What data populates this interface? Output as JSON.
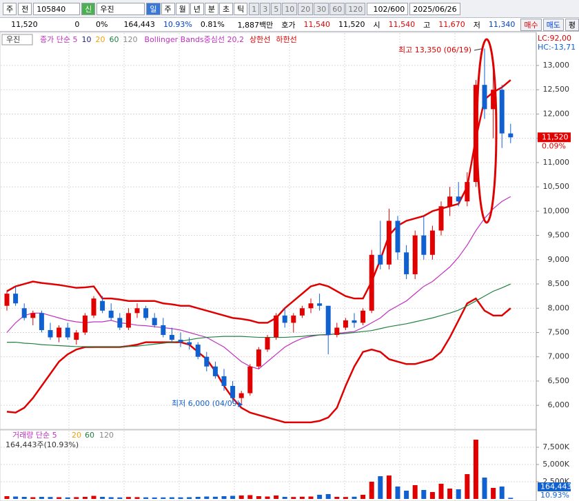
{
  "toolbar": {
    "market": "주",
    "prev": "전",
    "code": "105840",
    "new": "신",
    "name": "우진",
    "periods": [
      "일",
      "주",
      "월",
      "년",
      "분",
      "초",
      "틱"
    ],
    "intervals": [
      "1",
      "3",
      "5",
      "10",
      "20",
      "30",
      "60",
      "120"
    ],
    "count": "102/600",
    "date": "2025/06/26"
  },
  "quote": {
    "price": "11,520",
    "change": "0",
    "change_rate": "0%",
    "volume": "164,443",
    "turnover": "10.93%",
    "ratio": "0.81%",
    "amount": "1,887백만",
    "bid_label": "호가",
    "ask": "11,540",
    "bid": "11,520",
    "open_label": "시",
    "open": "11,540",
    "high_label": "고",
    "high": "11,670",
    "low_label": "저",
    "low": "11,340",
    "buy": "매수",
    "sell": "매도",
    "avg": "평"
  },
  "chart_data": [
    {
      "type": "candlestick",
      "legend": {
        "name": "우진",
        "items": [
          "종가 단순 5",
          "10",
          "20",
          "120"
        ]
      },
      "corner": [
        "LC:92,00",
        "HC:-13,71"
      ],
      "annotations": [
        "최고 13,350 (06/19)",
        "최저 6,000 (04/09)"
      ],
      "last": "11,520",
      "last_change": "0.09%",
      "up_color": "#e00000",
      "down_color": "#1060d0",
      "candles": [
        [
          8050,
          8350,
          7950,
          8300
        ],
        [
          8300,
          8450,
          8050,
          8100
        ],
        [
          8000,
          8100,
          7750,
          7800
        ],
        [
          7800,
          7950,
          7650,
          7900
        ],
        [
          7900,
          7950,
          7500,
          7550
        ],
        [
          7550,
          7700,
          7350,
          7400
        ],
        [
          7400,
          7650,
          7300,
          7600
        ],
        [
          7600,
          7700,
          7350,
          7400
        ],
        [
          7350,
          7550,
          7250,
          7500
        ],
        [
          7500,
          7900,
          7450,
          7850
        ],
        [
          7850,
          8250,
          7800,
          8200
        ],
        [
          8150,
          8250,
          7900,
          7950
        ],
        [
          7950,
          8100,
          7750,
          7800
        ],
        [
          7800,
          7900,
          7550,
          7600
        ],
        [
          7600,
          8000,
          7550,
          7900
        ],
        [
          7900,
          8100,
          7800,
          8000
        ],
        [
          8000,
          8050,
          7750,
          7800
        ],
        [
          7800,
          7900,
          7600,
          7650
        ],
        [
          7650,
          7800,
          7400,
          7450
        ],
        [
          7450,
          7600,
          7300,
          7350
        ],
        [
          7350,
          7500,
          7200,
          7300
        ],
        [
          7300,
          7400,
          7150,
          7250
        ],
        [
          7250,
          7300,
          6950,
          7000
        ],
        [
          7000,
          7100,
          6700,
          6800
        ],
        [
          6800,
          6900,
          6550,
          6600
        ],
        [
          6600,
          6750,
          6300,
          6400
        ],
        [
          6400,
          6500,
          6050,
          6150
        ],
        [
          6150,
          6300,
          6000,
          6250
        ],
        [
          6250,
          6850,
          6200,
          6800
        ],
        [
          6800,
          7200,
          6750,
          7150
        ],
        [
          7150,
          7450,
          7100,
          7400
        ],
        [
          7400,
          7900,
          7350,
          7850
        ],
        [
          7850,
          8000,
          7600,
          7700
        ],
        [
          7700,
          7900,
          7500,
          7850
        ],
        [
          7850,
          8050,
          7800,
          8000
        ],
        [
          8000,
          8200,
          7900,
          8100
        ],
        [
          8100,
          8300,
          7950,
          8050
        ],
        [
          8050,
          8050,
          7050,
          7450
        ],
        [
          7450,
          7700,
          7400,
          7600
        ],
        [
          7600,
          7800,
          7550,
          7750
        ],
        [
          7750,
          7900,
          7600,
          7700
        ],
        [
          7700,
          8000,
          7650,
          7950
        ],
        [
          7950,
          9200,
          7900,
          9100
        ],
        [
          9100,
          9800,
          8800,
          8900
        ],
        [
          8900,
          10050,
          8800,
          9800
        ],
        [
          9800,
          9900,
          9000,
          9150
        ],
        [
          9150,
          9300,
          8600,
          8700
        ],
        [
          8700,
          9600,
          8600,
          9500
        ],
        [
          9500,
          9900,
          9000,
          9100
        ],
        [
          9100,
          9700,
          9000,
          9600
        ],
        [
          9600,
          10200,
          9500,
          10100
        ],
        [
          10100,
          10500,
          9900,
          10300
        ],
        [
          10300,
          10600,
          10100,
          10200
        ],
        [
          10200,
          10800,
          10100,
          10600
        ],
        [
          10600,
          12700,
          10500,
          12600
        ],
        [
          12600,
          13350,
          11900,
          12100
        ],
        [
          12100,
          12900,
          11500,
          12500
        ],
        [
          12500,
          12600,
          11300,
          11600
        ],
        [
          11600,
          11800,
          11400,
          11520
        ]
      ],
      "series": [
        {
          "name": "상한선",
          "color": "#e00000",
          "width": 2.5,
          "values": [
            8350,
            8450,
            8500,
            8550,
            8520,
            8500,
            8480,
            8450,
            8420,
            8430,
            8450,
            8200,
            8200,
            8180,
            8150,
            8150,
            8150,
            8150,
            8100,
            8080,
            8050,
            8050,
            8000,
            7950,
            7900,
            7850,
            7800,
            7780,
            7750,
            7700,
            7700,
            7800,
            8000,
            8150,
            8300,
            8450,
            8500,
            8450,
            8350,
            8250,
            8200,
            8200,
            8550,
            9000,
            9500,
            9700,
            9800,
            9850,
            9900,
            10000,
            10050,
            10100,
            10150,
            10500,
            11500,
            12300,
            12450,
            12550,
            12700
          ]
        },
        {
          "name": "하한선",
          "color": "#e00000",
          "width": 2.5,
          "values": [
            5870,
            5850,
            5950,
            6150,
            6400,
            6650,
            6900,
            7050,
            7150,
            7200,
            7200,
            7200,
            7200,
            7200,
            7220,
            7250,
            7300,
            7300,
            7300,
            7300,
            7300,
            7250,
            7100,
            6950,
            6700,
            6400,
            6150,
            5950,
            5850,
            5800,
            5750,
            5700,
            5650,
            5650,
            5650,
            5650,
            5680,
            5750,
            5950,
            6400,
            6800,
            7100,
            7150,
            7100,
            6950,
            6900,
            6850,
            6850,
            6900,
            6950,
            7100,
            7400,
            7750,
            8100,
            8200,
            7950,
            7850,
            7850,
            8000
          ]
        },
        {
          "name": "Bollinger Bands중심선 20,2",
          "color": "#c030c0",
          "width": 1.2,
          "values": [
            7500,
            7700,
            7850,
            7900,
            7900,
            7850,
            7800,
            7750,
            7720,
            7700,
            7720,
            7720,
            7750,
            7700,
            7680,
            7650,
            7640,
            7620,
            7600,
            7580,
            7550,
            7500,
            7450,
            7400,
            7300,
            7200,
            7050,
            6900,
            6800,
            6750,
            6900,
            7050,
            7200,
            7300,
            7380,
            7420,
            7450,
            7450,
            7480,
            7500,
            7520,
            7600,
            7700,
            7800,
            7950,
            8050,
            8150,
            8300,
            8450,
            8550,
            8700,
            8850,
            9050,
            9300,
            9600,
            9850,
            10050,
            10200,
            10300
          ]
        },
        {
          "name": "60",
          "color": "#208040",
          "width": 1.2,
          "values": [
            7300,
            7300,
            7280,
            7270,
            7250,
            7240,
            7230,
            7220,
            7210,
            7210,
            7200,
            7200,
            7200,
            7200,
            7210,
            7220,
            7240,
            7260,
            7280,
            7300,
            7320,
            7350,
            7380,
            7400,
            7410,
            7420,
            7420,
            7420,
            7410,
            7400,
            7400,
            7400,
            7400,
            7410,
            7420,
            7440,
            7450,
            7460,
            7470,
            7480,
            7500,
            7520,
            7540,
            7580,
            7620,
            7650,
            7680,
            7720,
            7760,
            7800,
            7850,
            7900,
            7960,
            8050,
            8150,
            8250,
            8350,
            8420,
            8500
          ]
        }
      ],
      "ylim": [
        5520,
        13525
      ],
      "yticks": [
        {
          "value": 6000,
          "label": "6,000"
        },
        {
          "value": 6500,
          "label": "6,500"
        },
        {
          "value": 7000,
          "label": "7,000"
        },
        {
          "value": 7500,
          "label": "7,500"
        },
        {
          "value": 8000,
          "label": "8,000"
        },
        {
          "value": 8500,
          "label": "8,500"
        },
        {
          "value": 9000,
          "label": "9,000"
        },
        {
          "value": 9500,
          "label": "9,500"
        },
        {
          "value": 10000,
          "label": "10,000"
        },
        {
          "value": 10500,
          "label": "10,500"
        },
        {
          "value": 11000,
          "label": "11,000"
        },
        {
          "value": 11500,
          "label": "11,500"
        },
        {
          "value": 12000,
          "label": "12,000"
        },
        {
          "value": 12500,
          "label": "12,500"
        },
        {
          "value": 13000,
          "label": "13,000"
        }
      ],
      "grid": true
    },
    {
      "type": "bar",
      "legend": [
        "거래량 단순 5",
        "20",
        "60",
        "120"
      ],
      "summary": "164,443주(10.93%)",
      "last": "164,443",
      "last_change": "10.93%",
      "values": [
        400000,
        350000,
        300000,
        250000,
        300000,
        280000,
        250000,
        220000,
        260000,
        300000,
        450000,
        300000,
        250000,
        220000,
        280000,
        260000,
        230000,
        210000,
        220000,
        240000,
        230000,
        250000,
        300000,
        350000,
        320000,
        400000,
        450000,
        500000,
        550000,
        400000,
        350000,
        500000,
        300000,
        280000,
        320000,
        350000,
        600000,
        700000,
        300000,
        280000,
        320000,
        600000,
        2500000,
        3300000,
        3400000,
        1800000,
        1200000,
        2000000,
        1300000,
        1000000,
        2200000,
        1500000,
        1400000,
        3600000,
        8600000,
        3100000,
        1600000,
        1800000,
        164443
      ],
      "ylim": [
        0,
        9800000
      ],
      "yticks": [
        {
          "value": 2500000,
          "label": "2,500K"
        },
        {
          "value": 5000000,
          "label": "5,000K"
        },
        {
          "value": 7500000,
          "label": "7,500K"
        }
      ],
      "grid": true
    }
  ]
}
